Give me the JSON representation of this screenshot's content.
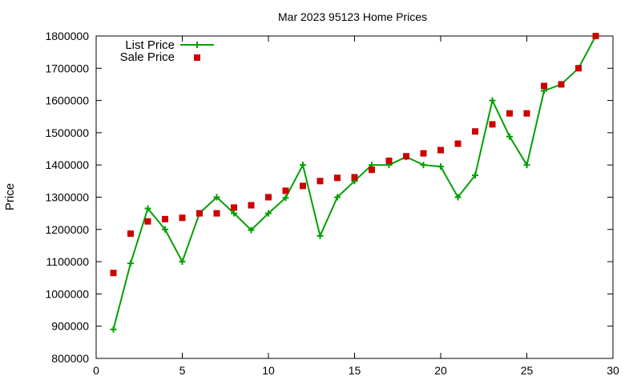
{
  "chart_data": {
    "type": "scatter",
    "title": "Mar 2023 95123 Home Prices",
    "xlabel": "",
    "ylabel": "Price",
    "xlim": [
      0,
      30
    ],
    "ylim": [
      800000,
      1800000
    ],
    "x_ticks": [
      0,
      5,
      10,
      15,
      20,
      25,
      30
    ],
    "y_ticks": [
      800000,
      900000,
      1000000,
      1100000,
      1200000,
      1300000,
      1400000,
      1500000,
      1600000,
      1700000,
      1800000
    ],
    "grid": false,
    "legend_position": "top-left",
    "series": [
      {
        "name": "List Price",
        "style": "line-with-plus-markers",
        "color": "#00a000",
        "x": [
          1,
          2,
          3,
          4,
          5,
          6,
          7,
          8,
          9,
          10,
          11,
          12,
          13,
          14,
          15,
          16,
          17,
          18,
          19,
          20,
          21,
          22,
          23,
          24,
          25,
          26,
          27,
          28,
          29
        ],
        "values": [
          890000,
          1095000,
          1265000,
          1200000,
          1100000,
          1250000,
          1300000,
          1250000,
          1198000,
          1250000,
          1298000,
          1400000,
          1180000,
          1300000,
          1350000,
          1400000,
          1400000,
          1425000,
          1400000,
          1395000,
          1300000,
          1368000,
          1600000,
          1488000,
          1400000,
          1630000,
          1650000,
          1700000,
          1800000
        ]
      },
      {
        "name": "Sale Price",
        "style": "square-markers",
        "color": "#cc0000",
        "x": [
          1,
          2,
          3,
          4,
          5,
          6,
          7,
          8,
          9,
          10,
          11,
          12,
          13,
          14,
          15,
          16,
          17,
          18,
          19,
          20,
          21,
          22,
          23,
          24,
          25,
          26,
          27,
          28,
          29
        ],
        "values": [
          1065000,
          1187000,
          1225000,
          1232000,
          1236000,
          1250000,
          1250000,
          1268000,
          1275000,
          1300000,
          1320000,
          1335000,
          1350000,
          1360000,
          1362000,
          1385000,
          1413000,
          1427000,
          1436000,
          1446000,
          1466000,
          1504000,
          1526000,
          1560000,
          1560000,
          1645000,
          1650000,
          1700000,
          1800000
        ]
      }
    ]
  }
}
